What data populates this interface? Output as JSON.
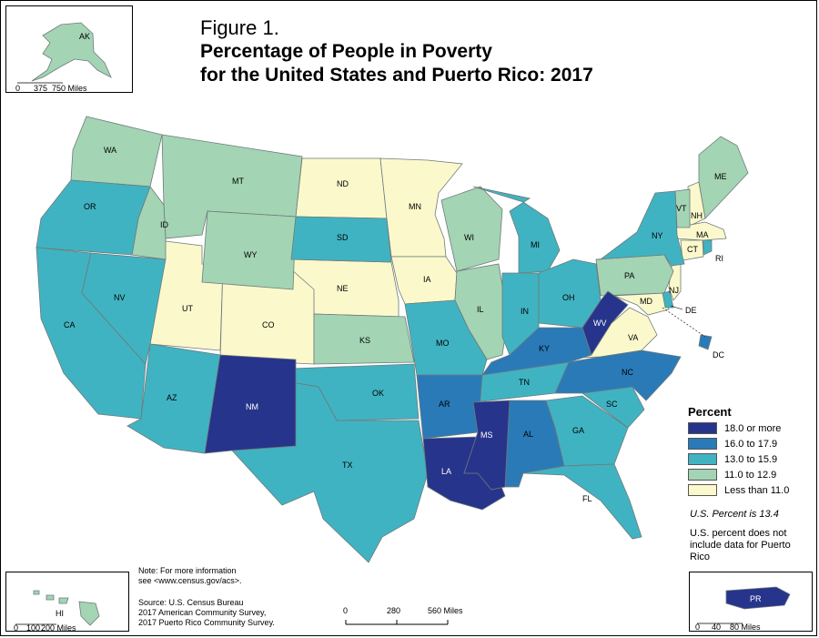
{
  "title": {
    "figure": "Figure 1.",
    "line1": "Percentage of People in Poverty",
    "line2": "for the United States and Puerto Rico: 2017"
  },
  "colors": {
    "c18": "#27348b",
    "c16": "#2a7ab8",
    "c13": "#40b3c2",
    "c11": "#a3d4b4",
    "c0": "#fbf9cc"
  },
  "legend": {
    "title": "Percent",
    "items": [
      {
        "label": "18.0 or more",
        "color": "#27348b"
      },
      {
        "label": "16.0 to 17.9",
        "color": "#2a7ab8"
      },
      {
        "label": "13.0 to 15.9",
        "color": "#40b3c2"
      },
      {
        "label": "11.0 to 12.9",
        "color": "#a3d4b4"
      },
      {
        "label": "Less than 11.0",
        "color": "#fbf9cc"
      }
    ]
  },
  "us_percent": "U.S. Percent is 13.4",
  "us_note": "U.S. percent does not include data for Puerto Rico",
  "notes": {
    "line1": "Note: For more information",
    "line2": "see <www.census.gov/acs>."
  },
  "source": {
    "line1": "Source: U.S. Census Bureau",
    "line2": "2017 American Community Survey,",
    "line3": "2017 Puerto Rico Community Survey."
  },
  "scale_bar": {
    "t0": "0",
    "t1": "280",
    "t2": "560 Miles"
  },
  "insets": {
    "ak": {
      "label": "AK",
      "s0": "0",
      "s1": "375",
      "s2": "750 Miles"
    },
    "hi": {
      "label": "HI",
      "s0": "0",
      "s1": "100",
      "s2": "200 Miles"
    },
    "pr": {
      "label": "PR",
      "s0": "0",
      "s1": "40",
      "s2": "80 Miles"
    }
  },
  "states": {
    "WA": "WA",
    "OR": "OR",
    "CA": "CA",
    "NV": "NV",
    "ID": "ID",
    "MT": "MT",
    "WY": "WY",
    "UT": "UT",
    "CO": "CO",
    "AZ": "AZ",
    "NM": "NM",
    "ND": "ND",
    "SD": "SD",
    "NE": "NE",
    "KS": "KS",
    "OK": "OK",
    "TX": "TX",
    "MN": "MN",
    "IA": "IA",
    "MO": "MO",
    "AR": "AR",
    "LA": "LA",
    "WI": "WI",
    "IL": "IL",
    "MI": "MI",
    "IN": "IN",
    "OH": "OH",
    "KY": "KY",
    "TN": "TN",
    "MS": "MS",
    "AL": "AL",
    "GA": "GA",
    "FL": "FL",
    "SC": "SC",
    "NC": "NC",
    "VA": "VA",
    "WV": "WV",
    "PA": "PA",
    "NY": "NY",
    "VT": "VT",
    "NH": "NH",
    "ME": "ME",
    "MA": "MA",
    "CT": "CT",
    "RI": "RI",
    "NJ": "NJ",
    "DE": "DE",
    "MD": "MD",
    "DC": "DC"
  }
}
